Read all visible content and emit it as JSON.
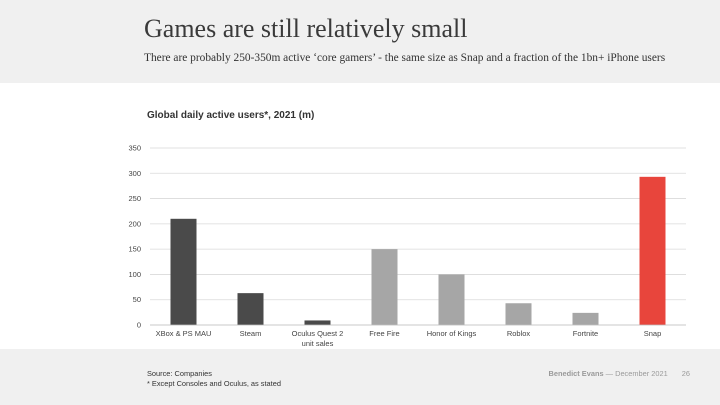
{
  "slide": {
    "title": "Games are still relatively small",
    "subtitle": "There are probably 250-350m active ‘core gamers’ - the same size as Snap and a fraction of the 1bn+ iPhone users"
  },
  "footer": {
    "source": "Source: Companies",
    "note": "* Except Consoles and Oculus, as stated",
    "author": "Benedict Evans",
    "separator": "—",
    "date": "December 2021",
    "page": "26"
  },
  "colors": {
    "console": "#4a4a4a",
    "game": "#a6a6a6",
    "snap": "#e8453c",
    "grid": "#d9d9d9"
  },
  "chart_data": {
    "type": "bar",
    "title": "Global daily active users*, 2021 (m)",
    "xlabel": "",
    "ylabel": "",
    "ylim": [
      0,
      350
    ],
    "yticks": [
      "0",
      "50",
      "100",
      "150",
      "200",
      "250",
      "300",
      "350"
    ],
    "grid": true,
    "legend": "none",
    "categories": [
      "XBox & PS MAU",
      "Steam",
      "Oculus Quest 2 unit sales",
      "Free Fire",
      "Honor of Kings",
      "Roblox",
      "Fortnite",
      "Snap"
    ],
    "category_lines": [
      [
        "XBox & PS MAU"
      ],
      [
        "Steam"
      ],
      [
        "Oculus Quest 2",
        "unit sales"
      ],
      [
        "Free Fire"
      ],
      [
        "Honor of Kings"
      ],
      [
        "Roblox"
      ],
      [
        "Fortnite"
      ],
      [
        "Snap"
      ]
    ],
    "values": [
      210,
      63,
      9,
      150,
      100,
      43,
      24,
      293
    ],
    "bar_colors": [
      "console",
      "console",
      "console",
      "game",
      "game",
      "game",
      "game",
      "snap"
    ]
  }
}
